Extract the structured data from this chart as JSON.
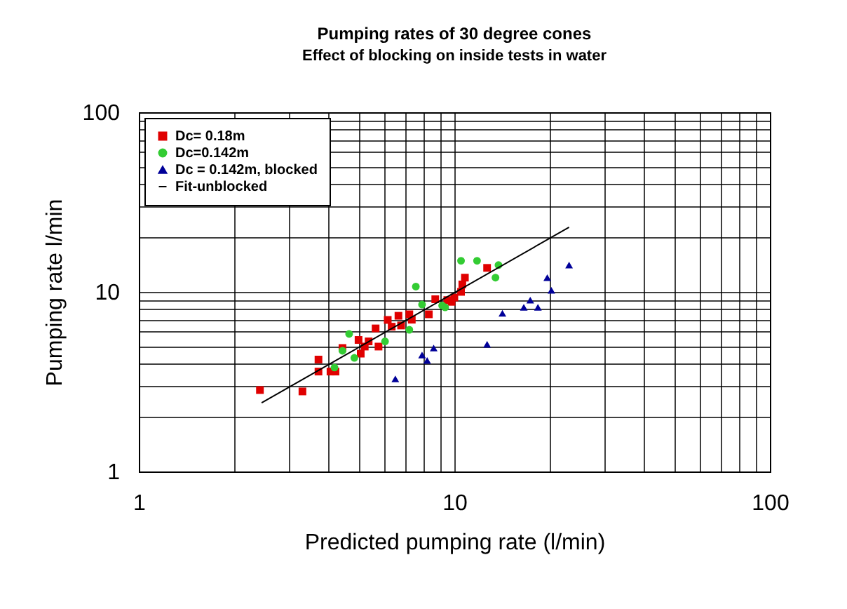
{
  "chart_data": {
    "type": "scatter",
    "title": "Pumping rates of 30 degree cones",
    "subtitle": "Effect of blocking on inside tests in water",
    "xlabel": "Predicted pumping rate (l/min)",
    "ylabel": "Pumping rate l/min",
    "log": "xy",
    "grid": true,
    "legend": "top left",
    "xlim": [
      1,
      100
    ],
    "ylim": [
      1,
      100
    ],
    "xticks": [
      1,
      {
        "value": 2,
        "label": null
      },
      {
        "value": 3,
        "label": null
      },
      {
        "value": 4,
        "label": null
      },
      {
        "value": 5,
        "label": null
      },
      {
        "value": 6,
        "label": null
      },
      {
        "value": 7,
        "label": null
      },
      {
        "value": 8,
        "label": null
      },
      {
        "value": 9,
        "label": null
      },
      10,
      {
        "value": 20,
        "label": null
      },
      {
        "value": 30,
        "label": null
      },
      {
        "value": 40,
        "label": null
      },
      {
        "value": 50,
        "label": null
      },
      {
        "value": 60,
        "label": null
      },
      {
        "value": 70,
        "label": null
      },
      {
        "value": 80,
        "label": null
      },
      {
        "value": 90,
        "label": null
      },
      100
    ],
    "yticks": [
      1,
      {
        "value": 2,
        "label": null
      },
      {
        "value": 3,
        "label": null
      },
      {
        "value": 4,
        "label": null
      },
      {
        "value": 5,
        "label": null
      },
      {
        "value": 6,
        "label": null
      },
      {
        "value": 7,
        "label": null
      },
      {
        "value": 8,
        "label": null
      },
      {
        "value": 9,
        "label": null
      },
      10,
      {
        "value": 20,
        "label": null
      },
      {
        "value": 30,
        "label": null
      },
      {
        "value": 40,
        "label": null
      },
      {
        "value": 50,
        "label": null
      },
      {
        "value": 60,
        "label": null
      },
      {
        "value": 70,
        "label": null
      },
      {
        "value": 80,
        "label": null
      },
      {
        "value": 90,
        "label": null
      },
      100
    ],
    "series": [
      {
        "name": "Dc= 0.18m",
        "marker": "square",
        "color": "#e00000",
        "x": [
          2.42,
          3.3,
          3.71,
          3.71,
          4.05,
          4.2,
          4.42,
          4.97,
          5.05,
          5.2,
          5.35,
          5.75,
          5.63,
          6.15,
          6.33,
          6.65,
          7.2,
          7.33,
          6.78,
          8.3,
          8.7,
          9.5,
          10.0,
          12.7,
          10.8,
          10.6,
          10.5,
          9.8
        ],
        "values": [
          2.84,
          2.79,
          4.2,
          3.6,
          3.6,
          3.6,
          4.87,
          5.4,
          4.53,
          4.96,
          5.3,
          4.96,
          6.26,
          6.98,
          6.4,
          7.36,
          7.5,
          7.0,
          6.5,
          7.5,
          9.1,
          9.0,
          9.3,
          13.6,
          12.0,
          11.0,
          10.0,
          8.8
        ]
      },
      {
        "name": "Dc=0.142m",
        "marker": "circle",
        "color": "#33cc33",
        "x": [
          4.64,
          4.42,
          4.17,
          4.82,
          6.03,
          7.2,
          7.9,
          9.15,
          10.5,
          11.8,
          13.8,
          13.5,
          7.55,
          9.35
        ],
        "values": [
          5.83,
          4.7,
          3.79,
          4.29,
          5.3,
          6.15,
          8.5,
          8.4,
          14.9,
          14.9,
          14.1,
          12.0,
          10.7,
          8.2
        ]
      },
      {
        "name": "Dc = 0.142m, blocked",
        "marker": "triangle",
        "color": "#000099",
        "x": [
          6.5,
          7.9,
          8.2,
          8.6,
          12.7,
          23.1,
          19.7,
          20.3,
          17.4,
          16.6,
          18.4,
          14.2
        ],
        "values": [
          3.28,
          4.45,
          4.15,
          4.87,
          5.1,
          14.1,
          12.0,
          10.2,
          9.0,
          8.2,
          8.2,
          7.6
        ]
      },
      {
        "name": "Fit-unblocked",
        "type": "line",
        "line_style": "solid",
        "color": "#000000",
        "x": [
          2.45,
          23.1
        ],
        "values": [
          2.41,
          22.9
        ]
      }
    ]
  }
}
